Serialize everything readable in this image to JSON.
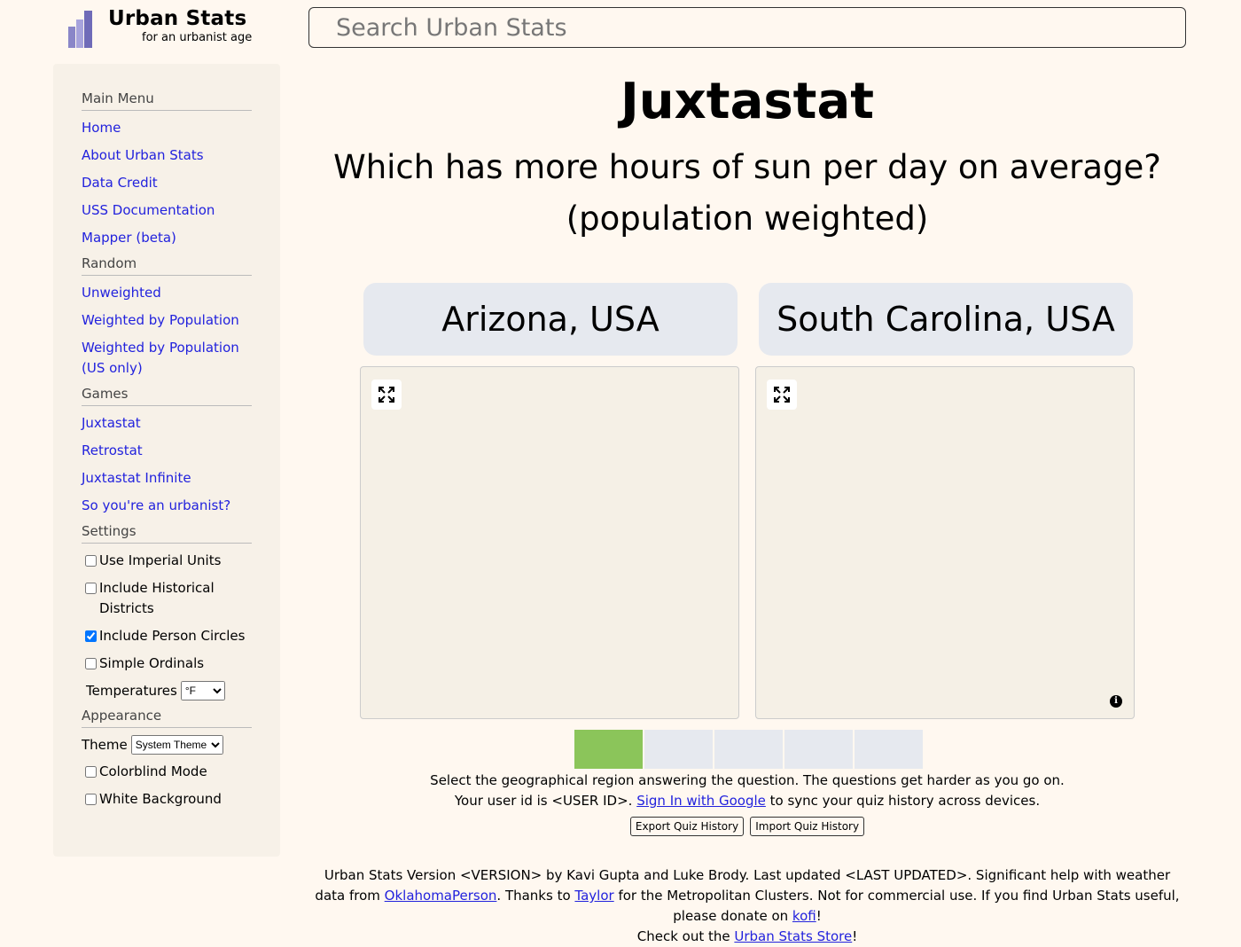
{
  "header": {
    "logo_title": "Urban Stats",
    "logo_subtitle": "for an urbanist age",
    "search_placeholder": "Search Urban Stats"
  },
  "sidebar": {
    "main_menu": {
      "heading": "Main Menu",
      "items": [
        "Home",
        "About Urban Stats",
        "Data Credit",
        "USS Documentation",
        "Mapper (beta)"
      ]
    },
    "random": {
      "heading": "Random",
      "items": [
        "Unweighted",
        "Weighted by Population",
        "Weighted by Population (US only)"
      ]
    },
    "games": {
      "heading": "Games",
      "items": [
        "Juxtastat",
        "Retrostat",
        "Juxtastat Infinite",
        "So you're an urbanist?"
      ]
    },
    "settings": {
      "heading": "Settings",
      "use_imperial": "Use Imperial Units",
      "include_historical": "Include Historical Districts",
      "include_person_circles": "Include Person Circles",
      "simple_ordinals": "Simple Ordinals",
      "temperatures_label": "Temperatures",
      "temperatures_value": "°F"
    },
    "appearance": {
      "heading": "Appearance",
      "theme_label": "Theme",
      "theme_value": "System Theme",
      "colorblind_mode": "Colorblind Mode",
      "white_background": "White Background"
    }
  },
  "main": {
    "title": "Juxtastat",
    "question_line1": "Which has more hours of sun per day on average?",
    "question_line2": "(population weighted)",
    "choice_a": "Arizona, USA",
    "choice_b": "South Carolina, USA",
    "progress_colors": {
      "done": "#8bc55a",
      "pending": "#e6e9ef"
    },
    "instructions": "Select the geographical region answering the question. The questions get harder as you go on.",
    "user_id_prefix": "Your user id is <USER ID>. ",
    "sign_in_link": "Sign In with Google",
    "user_id_suffix": " to sync your quiz history across devices.",
    "export_button": "Export Quiz History",
    "import_button": "Import Quiz History"
  },
  "footer": {
    "part1": "Urban Stats Version <VERSION> by Kavi Gupta and Luke Brody. Last updated <LAST UPDATED>. Significant help with weather data from ",
    "link1": "OklahomaPerson",
    "part2": ". Thanks to ",
    "link2": "Taylor",
    "part3": " for the Metropolitan Clusters. Not for commercial use. If you find Urban Stats useful, please donate on ",
    "link3": "kofi",
    "part4": "!",
    "part5": "Check out the ",
    "link4": "Urban Stats Store",
    "part6": "!"
  }
}
